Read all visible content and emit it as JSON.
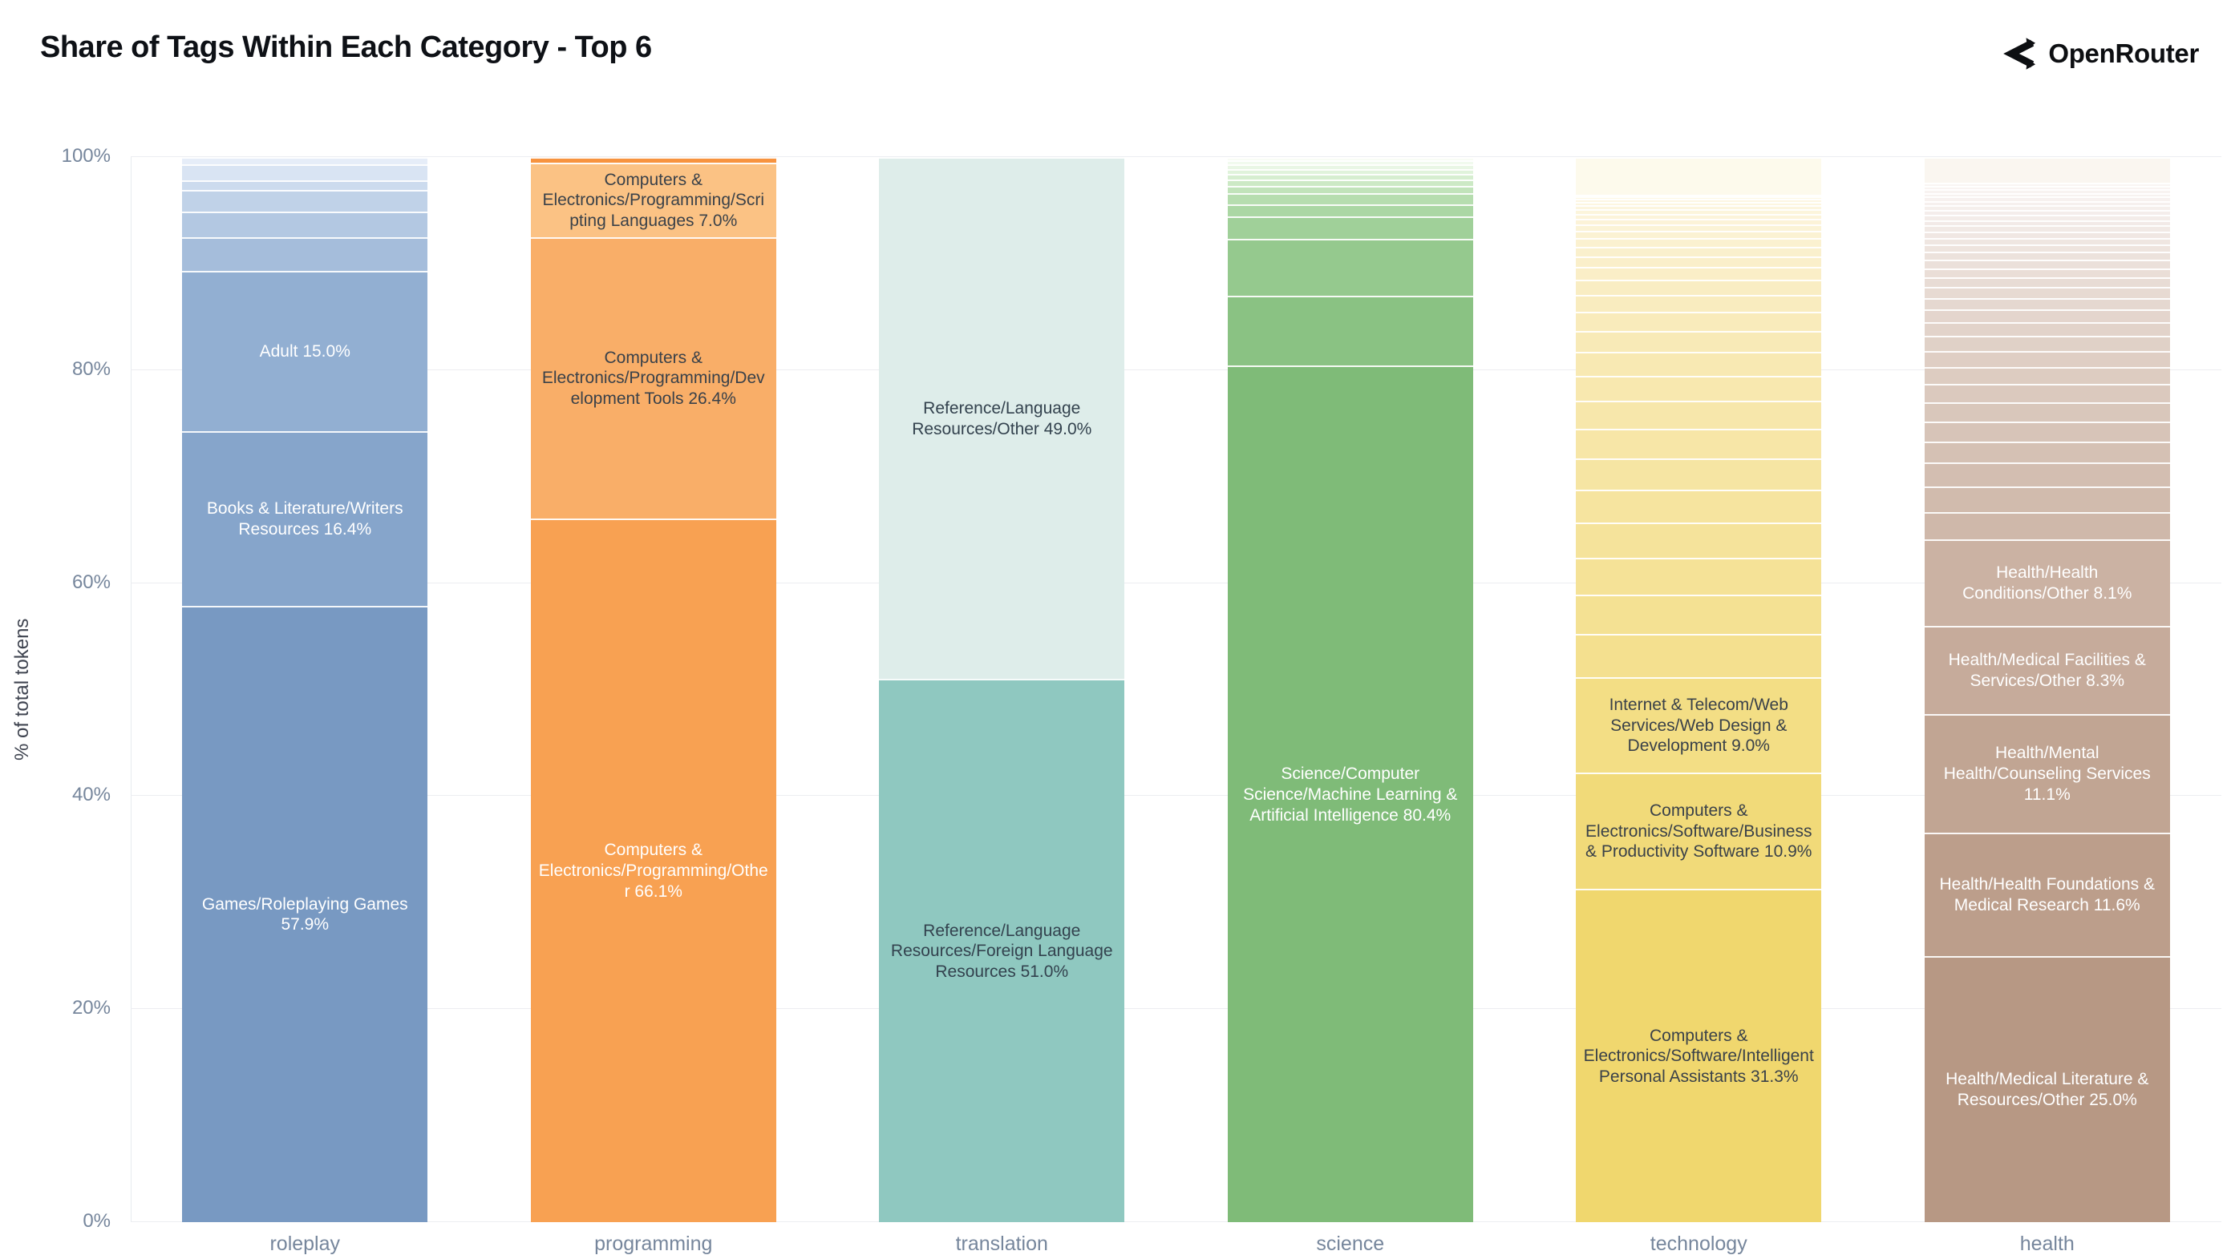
{
  "header": {
    "title": "Share of Tags Within Each Category - Top 6",
    "brand": {
      "label": "OpenRouter",
      "icon": "openrouter-logo-icon",
      "color": "#0d0f12"
    }
  },
  "chart_data": {
    "type": "bar",
    "variant": "stacked-100",
    "title": "Share of Tags Within Each Category - Top 6",
    "xlabel": "",
    "ylabel": "% of total tokens",
    "ylim": [
      0,
      100
    ],
    "grid": true,
    "legend": false,
    "segment_order": "bottom-to-top",
    "yticks": [
      {
        "label": "0%",
        "value": 0
      },
      {
        "label": "20%",
        "value": 20
      },
      {
        "label": "40%",
        "value": 40
      },
      {
        "label": "60%",
        "value": 60
      },
      {
        "label": "80%",
        "value": 80
      },
      {
        "label": "100%",
        "value": 100
      }
    ],
    "categories": [
      "roleplay",
      "programming",
      "translation",
      "science",
      "technology",
      "health"
    ],
    "bars": [
      {
        "category": "roleplay",
        "segments": [
          {
            "label": "Games/Roleplaying Games",
            "pct": 57.9,
            "color": "#7899c2",
            "text": "Games/Roleplaying Games 57.9%",
            "text_color": "#ffffff"
          },
          {
            "label": "Books & Literature/Writers Resources",
            "pct": 16.4,
            "color": "#86a5cb",
            "text": "Books & Literature/Writers Resources 16.4%",
            "text_color": "#ffffff"
          },
          {
            "label": "Adult",
            "pct": 15.0,
            "color": "#92afd2",
            "text": "Adult 15.0%",
            "text_color": "#ffffff"
          },
          {
            "label": "",
            "pct": 3.2,
            "color": "#a5bddb"
          },
          {
            "label": "",
            "pct": 2.4,
            "color": "#b3c8e2"
          },
          {
            "label": "",
            "pct": 2.0,
            "color": "#c0d2e8"
          },
          {
            "label": "",
            "pct": 0.9,
            "color": "#ccdbee"
          },
          {
            "label": "",
            "pct": 1.5,
            "color": "#d9e4f3"
          },
          {
            "label": "",
            "pct": 0.7,
            "color": "#e6edf8"
          }
        ]
      },
      {
        "category": "programming",
        "segments": [
          {
            "label": "Computers & Electronics/Programming/Other",
            "pct": 66.1,
            "color": "#f8a152",
            "text": "Computers & Electronics/Programming/Other 66.1%",
            "text_color": "#ffffff"
          },
          {
            "label": "Computers & Electronics/Programming/Development Tools",
            "pct": 26.4,
            "color": "#f9ae68",
            "text": "Computers & Electronics/Programming/Development Tools 26.4%",
            "text_color": "#3a4149"
          },
          {
            "label": "Computers & Electronics/Programming/Scripting Languages",
            "pct": 7.0,
            "color": "#fbc284",
            "text": "Computers & Electronics/Programming/Scripting Languages 7.0%",
            "text_color": "#3a4149"
          },
          {
            "label": "",
            "pct": 0.5,
            "color": "#f7933f"
          }
        ]
      },
      {
        "category": "translation",
        "segments": [
          {
            "label": "Reference/Language Resources/Foreign Language Resources",
            "pct": 51.0,
            "color": "#8fc8c0",
            "text": "Reference/Language Resources/Foreign Language Resources 51.0%",
            "text_color": "#33424e"
          },
          {
            "label": "Reference/Language Resources/Other",
            "pct": 49.0,
            "color": "#deedea",
            "text": "Reference/Language Resources/Other 49.0%",
            "text_color": "#33424e"
          }
        ]
      },
      {
        "category": "science",
        "segments": [
          {
            "label": "Science/Computer Science/Machine Learning & Artificial Intelligence",
            "pct": 80.4,
            "color": "#7fbb78",
            "text": "Science/Computer Science/Machine Learning & Artificial Intelligence 80.4%",
            "text_color": "#ffffff"
          },
          {
            "label": "",
            "pct": 6.6,
            "color": "#8ac283"
          },
          {
            "label": "",
            "pct": 5.3,
            "color": "#95c98e"
          },
          {
            "label": "",
            "pct": 2.1,
            "color": "#a0d099"
          },
          {
            "label": "",
            "pct": 1.2,
            "color": "#abd7a4"
          },
          {
            "label": "",
            "pct": 1.0,
            "color": "#b6ddaf"
          },
          {
            "label": "",
            "pct": 0.7,
            "color": "#c1e3ba"
          },
          {
            "label": "",
            "pct": 0.6,
            "color": "#cce9c5"
          },
          {
            "label": "",
            "pct": 0.5,
            "color": "#d6eed0"
          },
          {
            "label": "",
            "pct": 0.5,
            "color": "#e0f3db"
          },
          {
            "label": "",
            "pct": 0.4,
            "color": "#e9f6e5"
          },
          {
            "label": "",
            "pct": 0.4,
            "color": "#f1faee"
          },
          {
            "label": "",
            "pct": 0.3,
            "color": "#f8fcf5"
          }
        ]
      },
      {
        "category": "technology",
        "segments": [
          {
            "label": "Computers & Electronics/Software/Intelligent Personal Assistants",
            "pct": 31.3,
            "color": "#f0d76e",
            "text": "Computers & Electronics/Software/Intelligent Personal Assistants 31.3%",
            "text_color": "#3a4149"
          },
          {
            "label": "Computers & Electronics/Software/Business & Productivity Software",
            "pct": 10.9,
            "color": "#f1da79",
            "text": "Computers & Electronics/Software/Business & Productivity Software 10.9%",
            "text_color": "#3a4149"
          },
          {
            "label": "Internet & Telecom/Web Services/Web Design & Development",
            "pct": 9.0,
            "color": "#f3de85",
            "text": "Internet & Telecom/Web Services/Web Design & Development 9.0%",
            "text_color": "#3a4149"
          },
          {
            "label": "",
            "pct": 4.0,
            "color": "#f4e08f"
          },
          {
            "label": "",
            "pct": 3.7,
            "color": "#f4e193"
          },
          {
            "label": "",
            "pct": 3.5,
            "color": "#f5e297"
          },
          {
            "label": "",
            "pct": 3.3,
            "color": "#f5e39b"
          },
          {
            "label": "",
            "pct": 3.1,
            "color": "#f6e49f"
          },
          {
            "label": "",
            "pct": 2.9,
            "color": "#f6e5a3"
          },
          {
            "label": "",
            "pct": 2.8,
            "color": "#f7e6a7"
          },
          {
            "label": "",
            "pct": 2.6,
            "color": "#f7e7ab"
          },
          {
            "label": "",
            "pct": 2.4,
            "color": "#f8e8af"
          },
          {
            "label": "",
            "pct": 2.2,
            "color": "#f8e9b3"
          },
          {
            "label": "",
            "pct": 2.0,
            "color": "#f8eab7"
          },
          {
            "label": "",
            "pct": 1.8,
            "color": "#f9ebbb"
          },
          {
            "label": "",
            "pct": 1.6,
            "color": "#f9ecbf"
          },
          {
            "label": "",
            "pct": 1.4,
            "color": "#f9edc3"
          },
          {
            "label": "",
            "pct": 1.2,
            "color": "#faeec7"
          },
          {
            "label": "",
            "pct": 1.0,
            "color": "#faefca"
          },
          {
            "label": "",
            "pct": 0.9,
            "color": "#faf0cd"
          },
          {
            "label": "",
            "pct": 0.8,
            "color": "#fbf1d0"
          },
          {
            "label": "",
            "pct": 0.7,
            "color": "#fbf2d3"
          },
          {
            "label": "",
            "pct": 0.6,
            "color": "#fbf3d6"
          },
          {
            "label": "",
            "pct": 0.5,
            "color": "#fcf3d8"
          },
          {
            "label": "",
            "pct": 0.5,
            "color": "#fcf4da"
          },
          {
            "label": "",
            "pct": 0.4,
            "color": "#fcf5dc"
          },
          {
            "label": "",
            "pct": 0.4,
            "color": "#fcf5de"
          },
          {
            "label": "",
            "pct": 0.3,
            "color": "#fdf6e0"
          },
          {
            "label": "",
            "pct": 0.3,
            "color": "#fdf6e2"
          },
          {
            "label": "",
            "pct": 0.2,
            "color": "#fdf7e4"
          },
          {
            "label": "",
            "pct": 0.2,
            "color": "#fdf7e5"
          },
          {
            "label": "",
            "pct": 3.5,
            "color": "#fdfaec"
          }
        ]
      },
      {
        "category": "health",
        "segments": [
          {
            "label": "Health/Medical Literature & Resources/Other",
            "pct": 25.0,
            "color": "#b79884",
            "text": "Health/Medical Literature & Resources/Other 25.0%",
            "text_color": "#ffffff"
          },
          {
            "label": "Health/Health Foundations & Medical Research",
            "pct": 11.6,
            "color": "#bc9e8b",
            "text": "Health/Health Foundations & Medical Research 11.6%",
            "text_color": "#ffffff"
          },
          {
            "label": "Health/Mental Health/Counseling Services",
            "pct": 11.1,
            "color": "#c1a593",
            "text": "Health/Mental Health/Counseling Services 11.1%",
            "text_color": "#ffffff"
          },
          {
            "label": "Health/Medical Facilities & Services/Other",
            "pct": 8.3,
            "color": "#c6ab9b",
            "text": "Health/Medical Facilities & Services/Other 8.3%",
            "text_color": "#ffffff"
          },
          {
            "label": "Health/Health Conditions/Other",
            "pct": 8.1,
            "color": "#cbb2a3",
            "text": "Health/Health Conditions/Other 8.1%",
            "text_color": "#ffffff"
          },
          {
            "label": "",
            "pct": 2.6,
            "color": "#cfb8aa"
          },
          {
            "label": "",
            "pct": 2.4,
            "color": "#d1bbad"
          },
          {
            "label": "",
            "pct": 2.2,
            "color": "#d3beb1"
          },
          {
            "label": "",
            "pct": 2.0,
            "color": "#d5c1b4"
          },
          {
            "label": "",
            "pct": 1.9,
            "color": "#d7c4b8"
          },
          {
            "label": "",
            "pct": 1.8,
            "color": "#d9c7bb"
          },
          {
            "label": "",
            "pct": 1.7,
            "color": "#dbc9be"
          },
          {
            "label": "",
            "pct": 1.6,
            "color": "#ddccc1"
          },
          {
            "label": "",
            "pct": 1.5,
            "color": "#dfcec4"
          },
          {
            "label": "",
            "pct": 1.4,
            "color": "#e0d1c7"
          },
          {
            "label": "",
            "pct": 1.3,
            "color": "#e2d3ca"
          },
          {
            "label": "",
            "pct": 1.2,
            "color": "#e4d5cd"
          },
          {
            "label": "",
            "pct": 1.1,
            "color": "#e5d8d0"
          },
          {
            "label": "",
            "pct": 1.0,
            "color": "#e7dad2"
          },
          {
            "label": "",
            "pct": 0.9,
            "color": "#e8dcd5"
          },
          {
            "label": "",
            "pct": 0.85,
            "color": "#eaded7"
          },
          {
            "label": "",
            "pct": 0.8,
            "color": "#ebe0da"
          },
          {
            "label": "",
            "pct": 0.75,
            "color": "#ece2dc"
          },
          {
            "label": "",
            "pct": 0.7,
            "color": "#eee4de"
          },
          {
            "label": "",
            "pct": 0.65,
            "color": "#efe6e1"
          },
          {
            "label": "",
            "pct": 0.6,
            "color": "#f0e7e3"
          },
          {
            "label": "",
            "pct": 0.55,
            "color": "#f1e9e5"
          },
          {
            "label": "",
            "pct": 0.5,
            "color": "#f2eae7"
          },
          {
            "label": "",
            "pct": 0.5,
            "color": "#f3ece9"
          },
          {
            "label": "",
            "pct": 0.45,
            "color": "#f4edeb"
          },
          {
            "label": "",
            "pct": 0.45,
            "color": "#f5efec"
          },
          {
            "label": "",
            "pct": 0.4,
            "color": "#f6f0ee"
          },
          {
            "label": "",
            "pct": 0.4,
            "color": "#f7f1ef"
          },
          {
            "label": "",
            "pct": 0.35,
            "color": "#f7f2f0"
          },
          {
            "label": "",
            "pct": 0.35,
            "color": "#f8f3f1"
          },
          {
            "label": "",
            "pct": 0.3,
            "color": "#f9f4f2"
          },
          {
            "label": "",
            "pct": 0.3,
            "color": "#f9f5f3"
          },
          {
            "label": "",
            "pct": 2.4,
            "color": "#faf6f0"
          }
        ]
      }
    ]
  }
}
